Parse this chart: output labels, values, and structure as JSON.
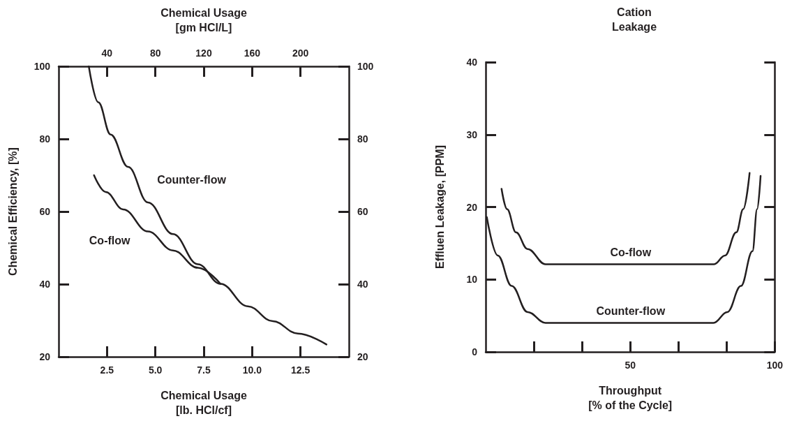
{
  "chart_data": [
    {
      "type": "line",
      "xlabel": "Chemical Usage\n[lb. HCl/cf]",
      "x2label": "Chemical Usage\n[gm HCl/L]",
      "ylabel": "Chemical Efficiency, [%]",
      "xlim": [
        0,
        15
      ],
      "xticks": [
        2.5,
        {
          "value": 5,
          "label": "5.0"
        },
        7.5,
        {
          "value": 10,
          "label": "10.0"
        },
        12.5
      ],
      "x2lim": [
        0,
        240
      ],
      "x2ticks": [
        40,
        80,
        120,
        160,
        200
      ],
      "ylim": [
        20,
        100
      ],
      "yticks": [
        20,
        40,
        60,
        80,
        100
      ],
      "y2lim": [
        20,
        100
      ],
      "y2ticks": [
        20,
        40,
        60,
        80,
        100
      ],
      "grid": false,
      "legend": false,
      "marker": "none",
      "line_style": "solid",
      "series": [
        {
          "name": "Counter-flow",
          "color": "#231f20",
          "x": [
            1.56,
            2.05,
            2.69,
            3.59,
            4.62,
            5.91,
            7.2,
            8.36,
            9.78,
            11.07,
            12.36,
            13.84
          ],
          "values": [
            100,
            90.1,
            81.2,
            72.3,
            62.5,
            53.8,
            45.5,
            40.1,
            33.9,
            29.8,
            26.4,
            23.4
          ]
        },
        {
          "name": "Co-flow",
          "color": "#231f20",
          "x": [
            1.83,
            2.43,
            3.34,
            4.62,
            5.91,
            7.2,
            8.36
          ],
          "values": [
            70,
            65.4,
            60.6,
            54.5,
            49.3,
            44.5,
            40.1
          ]
        }
      ]
    },
    {
      "type": "line",
      "title": "Cation\nLeakage",
      "xlabel": "Throughput\n[% of the Cycle]",
      "ylabel": "Effluen Leakage, [PPM]",
      "xlim": [
        0,
        100
      ],
      "xticks": [
        {
          "value": 16.67,
          "label": null
        },
        {
          "value": 33.33,
          "label": null
        },
        50,
        {
          "value": 66.67,
          "label": null
        },
        {
          "value": 83.33,
          "label": null
        },
        100
      ],
      "ylim": [
        0,
        40
      ],
      "yticks": [
        0,
        10,
        20,
        30,
        40
      ],
      "grid": false,
      "legend": false,
      "marker": "none",
      "line_style": "solid",
      "series": [
        {
          "name": "Co-flow",
          "color": "#231f20",
          "x": [
            5.5,
            7.4,
            10.5,
            14.5,
            20.7,
            79.0,
            82.8,
            86.7,
            89.1,
            91.3
          ],
          "values": [
            22.5,
            19.7,
            16.5,
            14.2,
            12.1,
            12.1,
            13.3,
            16.5,
            19.7,
            24.7
          ]
        },
        {
          "name": "Counter-flow",
          "color": "#231f20",
          "x": [
            0.4,
            4.2,
            9.0,
            14.5,
            20.7,
            78.8,
            83.6,
            88.3,
            92.3,
            93.9,
            95.1
          ],
          "values": [
            18.6,
            13.3,
            9.1,
            5.5,
            4.0,
            4.0,
            5.5,
            9.1,
            13.9,
            19.7,
            24.3
          ]
        }
      ]
    }
  ]
}
